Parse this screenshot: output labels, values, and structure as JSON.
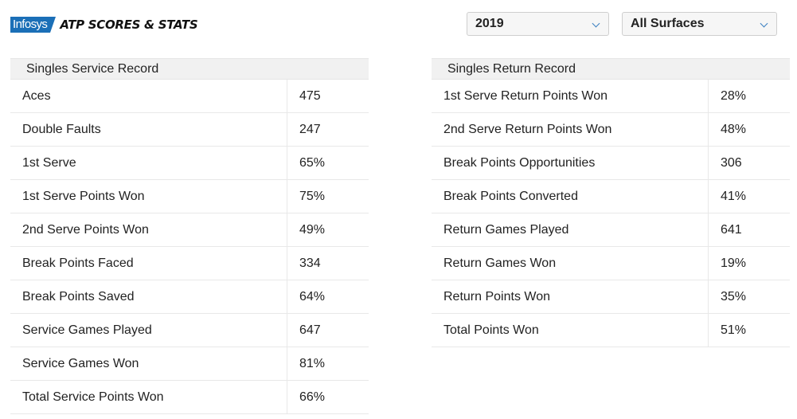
{
  "header": {
    "logo_text": "Infosys",
    "title": "ATP SCORES & STATS"
  },
  "filters": {
    "year": "2019",
    "surface": "All Surfaces"
  },
  "service": {
    "title": "Singles Service Record",
    "rows": [
      {
        "label": "Aces",
        "value": "475"
      },
      {
        "label": "Double Faults",
        "value": "247"
      },
      {
        "label": "1st Serve",
        "value": "65%"
      },
      {
        "label": "1st Serve Points Won",
        "value": "75%"
      },
      {
        "label": "2nd Serve Points Won",
        "value": "49%"
      },
      {
        "label": "Break Points Faced",
        "value": "334"
      },
      {
        "label": "Break Points Saved",
        "value": "64%"
      },
      {
        "label": "Service Games Played",
        "value": "647"
      },
      {
        "label": "Service Games Won",
        "value": "81%"
      },
      {
        "label": "Total Service Points Won",
        "value": "66%"
      }
    ]
  },
  "return": {
    "title": "Singles Return Record",
    "rows": [
      {
        "label": "1st Serve Return Points Won",
        "value": "28%"
      },
      {
        "label": "2nd Serve Return Points Won",
        "value": "48%"
      },
      {
        "label": "Break Points Opportunities",
        "value": "306"
      },
      {
        "label": "Break Points Converted",
        "value": "41%"
      },
      {
        "label": "Return Games Played",
        "value": "641"
      },
      {
        "label": "Return Games Won",
        "value": "19%"
      },
      {
        "label": "Return Points Won",
        "value": "35%"
      },
      {
        "label": "Total Points Won",
        "value": "51%"
      }
    ]
  }
}
